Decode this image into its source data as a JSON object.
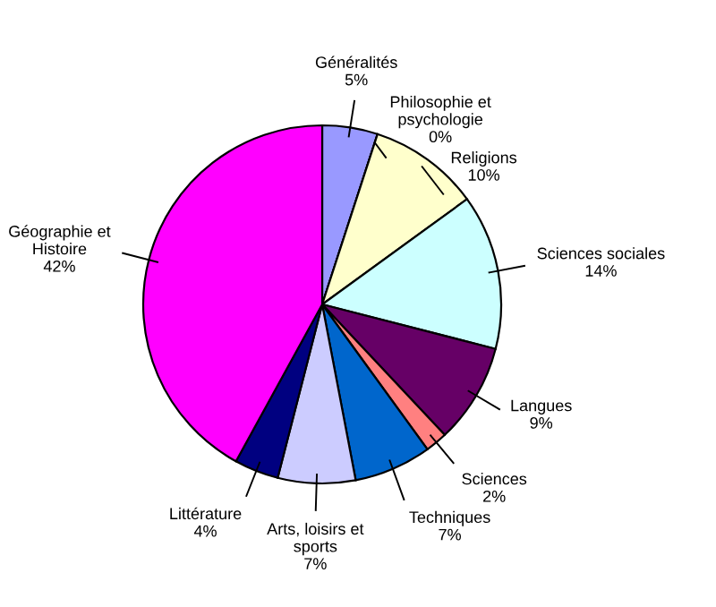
{
  "chart_data": {
    "type": "pie",
    "categories": [
      "Généralités",
      "Philosophie et\npsychologie",
      "Religions",
      "Sciences sociales",
      "Langues",
      "Sciences",
      "Techniques",
      "Arts, loisirs et\nsports",
      "Littérature",
      "Géographie et\nHistoire"
    ],
    "values": [
      5,
      0,
      10,
      14,
      9,
      2,
      7,
      7,
      4,
      42
    ],
    "value_labels": [
      "5%",
      "0%",
      "10%",
      "14%",
      "9%",
      "2%",
      "7%",
      "7%",
      "4%",
      "42%"
    ],
    "colors": [
      "#9999ff",
      "#993366",
      "#ffffcc",
      "#ccffff",
      "#660066",
      "#ff8080",
      "#0066cc",
      "#ccccff",
      "#000080",
      "#ff00ff"
    ]
  }
}
